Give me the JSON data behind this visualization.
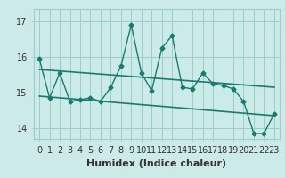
{
  "title": "",
  "xlabel": "Humidex (Indice chaleur)",
  "ylabel": "",
  "background_color": "#cceae7",
  "line_color": "#1a7a6e",
  "xlim": [
    -0.5,
    23.5
  ],
  "ylim": [
    13.7,
    17.35
  ],
  "yticks": [
    14,
    15,
    16,
    17
  ],
  "xticks": [
    0,
    1,
    2,
    3,
    4,
    5,
    6,
    7,
    8,
    9,
    10,
    11,
    12,
    13,
    14,
    15,
    16,
    17,
    18,
    19,
    20,
    21,
    22,
    23
  ],
  "spiky_x": [
    0,
    1,
    2,
    3,
    4,
    5,
    6,
    7,
    8,
    9,
    10,
    11,
    12,
    13,
    14,
    15,
    16,
    17,
    18,
    19,
    20,
    21,
    22,
    23
  ],
  "spiky_y": [
    15.95,
    14.85,
    15.55,
    14.75,
    14.8,
    14.85,
    14.75,
    15.15,
    15.75,
    16.9,
    15.55,
    15.05,
    16.25,
    16.6,
    15.15,
    15.1,
    15.55,
    15.25,
    15.2,
    15.1,
    14.75,
    13.85,
    13.85,
    14.4
  ],
  "upper_trend_x": [
    0,
    23
  ],
  "upper_trend_y": [
    15.65,
    15.15
  ],
  "lower_trend_x": [
    0,
    23
  ],
  "lower_trend_y": [
    14.9,
    14.35
  ],
  "grid_color": "#99d0cc",
  "xlabel_fontsize": 8,
  "tick_fontsize": 7,
  "tick_color": "#333333"
}
